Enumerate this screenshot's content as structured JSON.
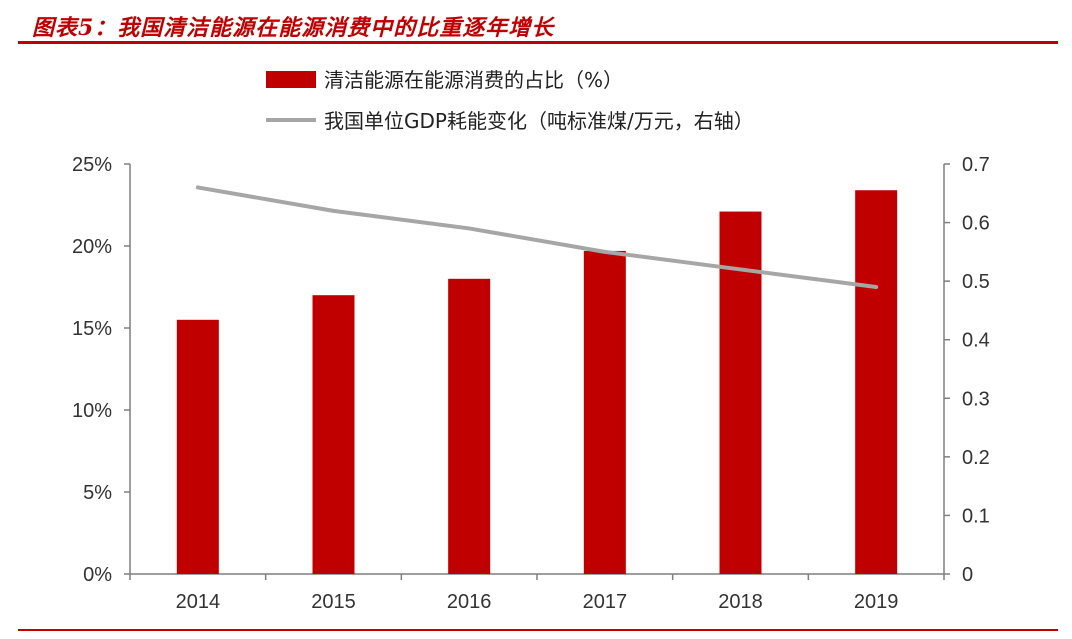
{
  "figure_title": "图表5：我国清洁能源在能源消费中的比重逐年增长",
  "colors": {
    "brand": "#c00000",
    "bar": "#c00000",
    "line": "#a6a6a6",
    "axis": "#7f7f7f"
  },
  "chart_data": {
    "type": "bar",
    "categories": [
      "2014",
      "2015",
      "2016",
      "2017",
      "2018",
      "2019"
    ],
    "series": [
      {
        "name": "清洁能源在能源消费的占比（%）",
        "type": "bar",
        "axis": "left",
        "values": [
          15.5,
          17.0,
          18.0,
          19.7,
          22.1,
          23.4
        ]
      },
      {
        "name": "我国单位GDP耗能变化（吨标准煤/万元，右轴）",
        "type": "line",
        "axis": "right",
        "values": [
          0.66,
          0.62,
          0.59,
          0.55,
          0.52,
          0.49
        ]
      }
    ],
    "y_left": {
      "ylim": [
        0,
        25
      ],
      "ticks": [
        0,
        5,
        10,
        15,
        20,
        25
      ],
      "tick_labels": [
        "0%",
        "5%",
        "10%",
        "15%",
        "20%",
        "25%"
      ]
    },
    "y_right": {
      "ylim": [
        0,
        0.7
      ],
      "ticks": [
        0,
        0.1,
        0.2,
        0.3,
        0.4,
        0.5,
        0.6,
        0.7
      ],
      "tick_labels": [
        "0",
        "0.1",
        "0.2",
        "0.3",
        "0.4",
        "0.5",
        "0.6",
        "0.7"
      ]
    },
    "grid": false,
    "legend_position": "top-center"
  }
}
